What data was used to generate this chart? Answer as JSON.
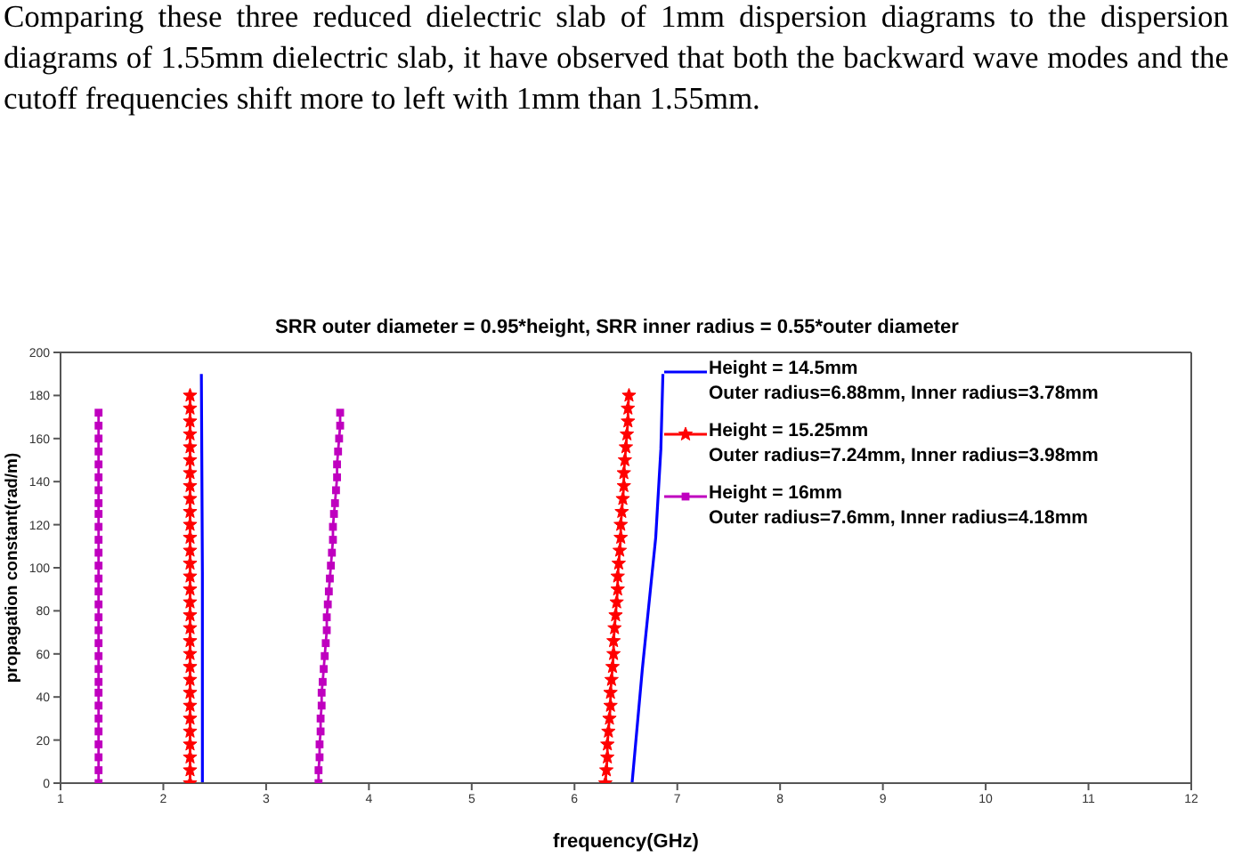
{
  "chart_data": {
    "type": "line",
    "title": "SRR outer diameter = 0.95*height, SRR inner radius = 0.55*outer diameter",
    "xlabel": "frequency(GHz)",
    "ylabel": "propagation constant(rad/m)",
    "annotations": [
      "Comparing these three reduced dielectric slab of 1mm dispersion diagrams to the dispersion diagrams of 1.55mm dielectric slab, it have observed that both the backward wave modes and the cutoff frequencies shift more to left with 1mm than 1.55mm."
    ],
    "xlim": [
      1,
      12
    ],
    "xticks": [
      1,
      2,
      3,
      4,
      5,
      6,
      7,
      8,
      9,
      10,
      11,
      12
    ],
    "ylim": [
      0,
      200
    ],
    "yticks": [
      0,
      20,
      40,
      60,
      80,
      100,
      120,
      140,
      160,
      180,
      200
    ],
    "grid": false,
    "legend": "top right",
    "series": [
      {
        "name": "Height = 14.5mm\nOuter radius=6.88mm, Inner radius=3.78mm",
        "color": "#0000ff",
        "marker": "none",
        "x": [
          2.38,
          2.38,
          2.37,
          null,
          6.56,
          6.66,
          6.79,
          6.84,
          6.86
        ],
        "values": [
          0,
          98,
          190,
          null,
          0,
          53,
          114,
          155,
          190
        ]
      },
      {
        "name": "Height = 15.25mm\nOuter radius=7.24mm, Inner radius=3.98mm",
        "color": "#ff0000",
        "marker": "star",
        "x": [
          2.26,
          2.26,
          2.26,
          2.26,
          2.26,
          2.26,
          2.26,
          2.26,
          2.26,
          2.26,
          2.26,
          2.26,
          2.26,
          2.26,
          2.26,
          2.26,
          2.26,
          2.26,
          2.26,
          2.26,
          2.26,
          2.26,
          2.26,
          2.26,
          2.26,
          2.26,
          2.26,
          2.26,
          2.26,
          2.26,
          2.26,
          null,
          6.3,
          6.31,
          6.32,
          6.32,
          6.33,
          6.34,
          6.35,
          6.35,
          6.36,
          6.37,
          6.38,
          6.38,
          6.39,
          6.4,
          6.41,
          6.42,
          6.42,
          6.43,
          6.44,
          6.45,
          6.45,
          6.46,
          6.47,
          6.48,
          6.48,
          6.49,
          6.5,
          6.51,
          6.52,
          6.52,
          6.53
        ],
        "values": [
          0,
          6,
          12,
          18,
          24,
          30,
          36,
          42,
          48,
          54,
          60,
          66,
          72,
          78,
          84,
          90,
          96,
          102,
          108,
          114,
          120,
          126,
          132,
          138,
          144,
          150,
          156,
          162,
          168,
          174,
          180,
          null,
          0,
          6,
          12,
          18,
          24,
          30,
          36,
          42,
          48,
          54,
          60,
          66,
          72,
          78,
          84,
          90,
          96,
          102,
          108,
          114,
          120,
          126,
          132,
          138,
          144,
          150,
          156,
          162,
          168,
          174,
          180
        ]
      },
      {
        "name": "Height = 16mm\nOuter radius=7.6mm, Inner radius=4.18mm",
        "color": "#bf00bf",
        "marker": "square",
        "x": [
          1.37,
          1.37,
          1.37,
          1.37,
          1.37,
          1.37,
          1.37,
          1.37,
          1.37,
          1.37,
          1.37,
          1.37,
          1.37,
          1.37,
          1.37,
          1.37,
          1.37,
          1.37,
          1.37,
          1.37,
          1.37,
          1.37,
          1.37,
          1.37,
          1.37,
          1.37,
          1.37,
          1.37,
          1.37,
          1.37,
          null,
          3.51,
          3.51,
          3.52,
          3.52,
          3.53,
          3.53,
          3.54,
          3.54,
          3.55,
          3.56,
          3.57,
          3.58,
          3.59,
          3.59,
          3.6,
          3.61,
          3.62,
          3.63,
          3.64,
          3.65,
          3.65,
          3.66,
          3.67,
          3.68,
          3.69,
          3.69,
          3.7,
          3.71,
          3.72,
          3.72
        ],
        "values": [
          0,
          6,
          12,
          18,
          24,
          30,
          36,
          42,
          47,
          53,
          59,
          65,
          71,
          77,
          83,
          89,
          95,
          101,
          107,
          113,
          119,
          125,
          130,
          136,
          142,
          148,
          154,
          160,
          166,
          172,
          null,
          0,
          6,
          12,
          18,
          24,
          30,
          36,
          42,
          47,
          53,
          59,
          65,
          71,
          77,
          83,
          89,
          95,
          101,
          107,
          113,
          119,
          125,
          130,
          136,
          142,
          148,
          154,
          160,
          166,
          172
        ]
      }
    ]
  }
}
